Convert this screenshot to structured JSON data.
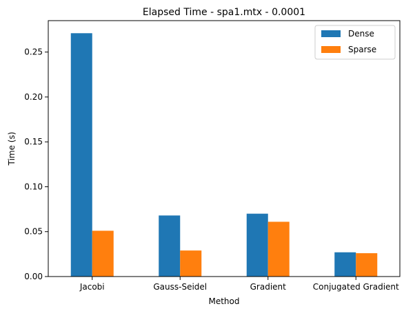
{
  "chart_data": {
    "type": "bar",
    "title": "Elapsed Time - spa1.mtx - 0.0001",
    "xlabel": "Method",
    "ylabel": "Time (s)",
    "categories": [
      "Jacobi",
      "Gauss-Seidel",
      "Gradient",
      "Conjugated Gradient"
    ],
    "series": [
      {
        "name": "Dense",
        "color": "#1f77b4",
        "values": [
          0.271,
          0.068,
          0.07,
          0.027
        ]
      },
      {
        "name": "Sparse",
        "color": "#ff7f0e",
        "values": [
          0.051,
          0.029,
          0.061,
          0.026
        ]
      }
    ],
    "yticks": [
      "0.00",
      "0.05",
      "0.10",
      "0.15",
      "0.20",
      "0.25"
    ],
    "ylim": [
      0,
      0.285
    ],
    "grid": false,
    "legend_position": "top-right"
  }
}
